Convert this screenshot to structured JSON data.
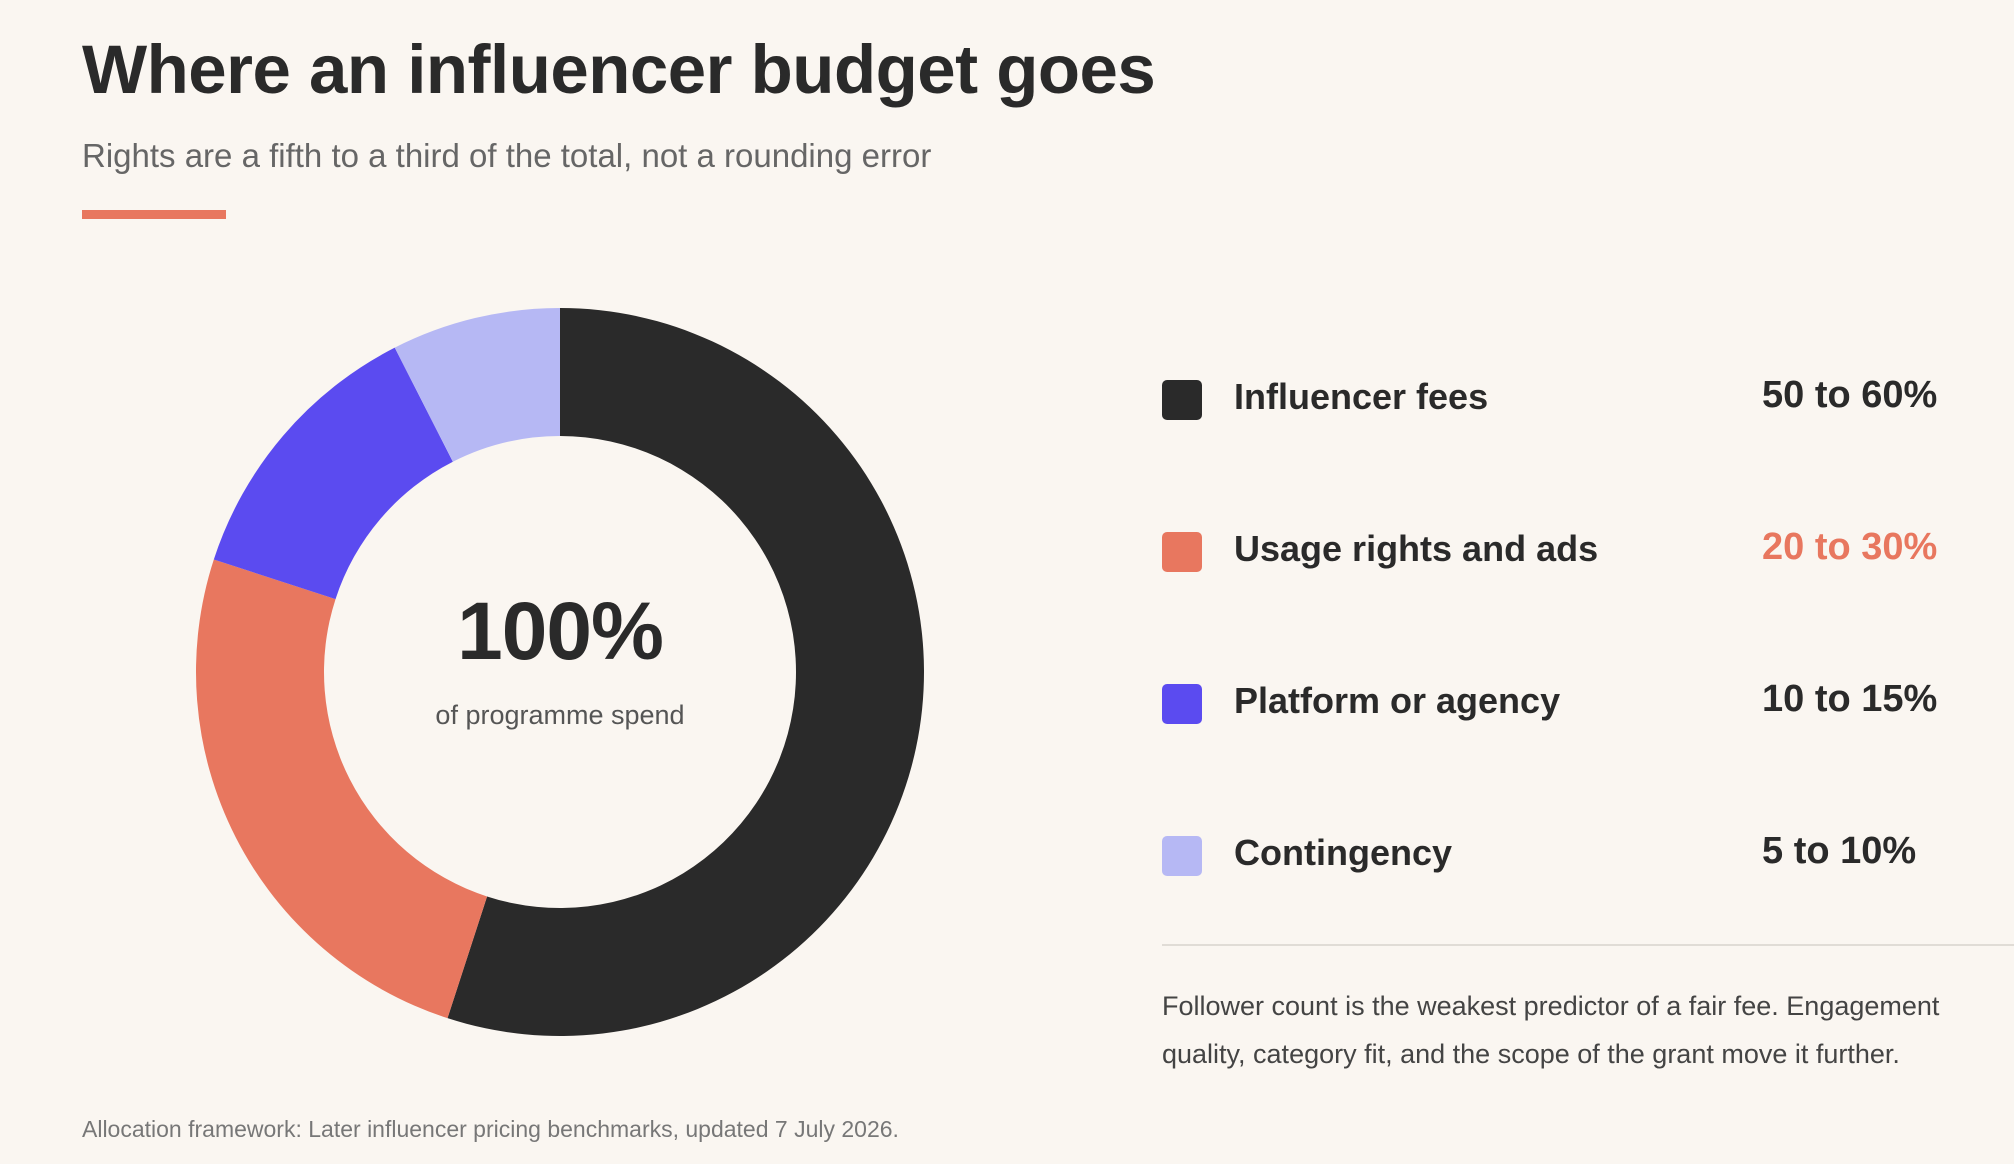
{
  "header": {
    "title": "Where an influencer budget goes",
    "subtitle": "Rights are a fifth to a third of the total, not a rounding error"
  },
  "colors": {
    "accent": "#e8775f",
    "background": "#faf6f1"
  },
  "chart_data": {
    "type": "pie",
    "variant": "donut",
    "title": "Where an influencer budget goes",
    "subtitle": "Rights are a fifth to a third of the total, not a rounding error",
    "center_value": "100%",
    "center_caption": "of programme spend",
    "series": [
      {
        "name": "Influencer fees",
        "range_label": "50 to 60%",
        "value": 55,
        "color": "#2a2a2a",
        "highlight": false
      },
      {
        "name": "Usage rights and ads",
        "range_label": "20 to 30%",
        "value": 25,
        "color": "#e8775f",
        "highlight": true
      },
      {
        "name": "Platform or agency",
        "range_label": "10 to 15%",
        "value": 12.5,
        "color": "#5b4bf0",
        "highlight": false
      },
      {
        "name": "Contingency",
        "range_label": "5 to 10%",
        "value": 7.5,
        "color": "#b6b8f4",
        "highlight": false
      }
    ],
    "legend_position": "right"
  },
  "note": "Follower count is the weakest predictor of a fair fee. Engagement quality, category fit, and the scope of the grant move it further.",
  "source": "Allocation framework: Later influencer pricing benchmarks, updated 7 July 2026."
}
